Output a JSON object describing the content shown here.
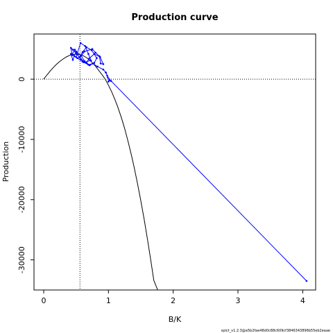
{
  "chart_data": {
    "type": "line",
    "title": "Production curve",
    "xlabel": "B/K",
    "ylabel": "Production",
    "xlim": [
      -0.15,
      4.2
    ],
    "ylim": [
      -35000,
      7500
    ],
    "x_ticks": [
      0,
      1,
      2,
      3,
      4
    ],
    "x_tick_labels": [
      "0",
      "1",
      "2",
      "3",
      "4"
    ],
    "y_ticks": [
      0,
      -10000,
      -20000,
      -30000
    ],
    "y_tick_labels": [
      "0",
      "-10000",
      "-20000",
      "-30000"
    ],
    "grid": false,
    "reference_lines": {
      "vertical_x": 0.56,
      "horizontal_y": 0
    },
    "series": [
      {
        "kind": "model-curve",
        "color": "#000000",
        "x": [
          0,
          0.05,
          0.1,
          0.15,
          0.2,
          0.25,
          0.3,
          0.35,
          0.4,
          0.45,
          0.5,
          0.55,
          0.6,
          0.65,
          0.7,
          0.75,
          0.8,
          0.85,
          0.9,
          0.95,
          1.0,
          1.05,
          1.1,
          1.15,
          1.2,
          1.25,
          1.3,
          1.35,
          1.4,
          1.45,
          1.5,
          1.55,
          1.6,
          1.65,
          1.7,
          1.76
        ],
        "y": [
          0,
          700,
          1350,
          1950,
          2500,
          2950,
          3350,
          3700,
          3950,
          4100,
          4150,
          4100,
          3950,
          3650,
          3250,
          2750,
          2150,
          1450,
          750,
          0,
          -1000,
          -2100,
          -3400,
          -4800,
          -6400,
          -8200,
          -10200,
          -12400,
          -14800,
          -17400,
          -20200,
          -23200,
          -26400,
          -29800,
          -33400,
          -35000
        ]
      },
      {
        "kind": "observed-trajectory",
        "color": "#0000ff",
        "x": [
          0.42,
          0.45,
          0.5,
          0.58,
          0.63,
          0.71,
          0.78,
          0.82,
          0.74,
          0.66,
          0.6,
          0.55,
          0.48,
          0.44,
          0.5,
          0.57,
          0.64,
          0.69,
          0.73,
          0.62,
          0.56,
          0.63,
          0.75,
          0.8,
          0.86,
          0.88,
          0.92,
          0.87,
          0.78,
          0.7,
          0.66,
          0.58,
          0.52,
          0.45,
          0.42,
          0.44,
          0.52,
          0.6,
          0.69,
          0.76,
          0.83,
          0.92,
          0.96,
          0.98,
          0.96,
          0.99,
          1.01,
          1.0,
          1.02,
          1.04,
          4.06
        ],
        "y": [
          4200,
          3200,
          4600,
          3900,
          3000,
          2300,
          2700,
          3500,
          4800,
          5300,
          4500,
          3600,
          4900,
          4100,
          3700,
          6000,
          5500,
          4200,
          3100,
          2800,
          3600,
          4600,
          5000,
          4400,
          3800,
          2600,
          2500,
          3700,
          4200,
          3400,
          2700,
          3300,
          4100,
          4900,
          5200,
          4000,
          3500,
          2900,
          2400,
          2600,
          2100,
          1600,
          1100,
          600,
          1100,
          300,
          0,
          -400,
          -200,
          -300,
          -33500
        ]
      }
    ],
    "footnote": "spict_v1.2.3@a5b2fae48d0c88c609cf3846343896b55eb2eaae"
  }
}
